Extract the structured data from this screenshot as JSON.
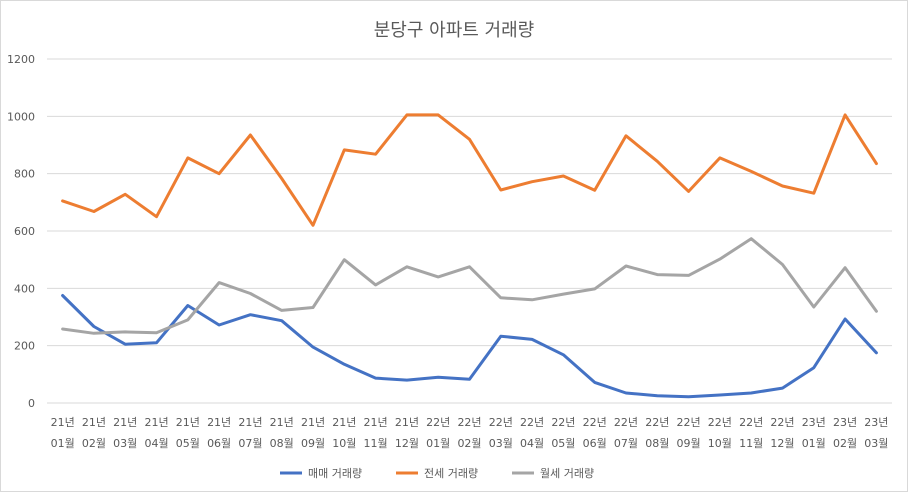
{
  "chart_data": {
    "type": "line",
    "title": "분당구 아파트 거래량",
    "xlabel": "",
    "ylabel": "",
    "ylim": [
      0,
      1200
    ],
    "yticks": [
      0,
      200,
      400,
      600,
      800,
      1000,
      1200
    ],
    "grid": true,
    "legend_position": "bottom",
    "categories": [
      [
        "21년",
        "01월"
      ],
      [
        "21년",
        "02월"
      ],
      [
        "21년",
        "03월"
      ],
      [
        "21년",
        "04월"
      ],
      [
        "21년",
        "05월"
      ],
      [
        "21년",
        "06월"
      ],
      [
        "21년",
        "07월"
      ],
      [
        "21년",
        "08월"
      ],
      [
        "21년",
        "09월"
      ],
      [
        "21년",
        "10월"
      ],
      [
        "21년",
        "11월"
      ],
      [
        "21년",
        "12월"
      ],
      [
        "22년",
        "01월"
      ],
      [
        "22년",
        "02월"
      ],
      [
        "22년",
        "03월"
      ],
      [
        "22년",
        "04월"
      ],
      [
        "22년",
        "05월"
      ],
      [
        "22년",
        "06월"
      ],
      [
        "22년",
        "07월"
      ],
      [
        "22년",
        "08월"
      ],
      [
        "22년",
        "09월"
      ],
      [
        "22년",
        "10월"
      ],
      [
        "22년",
        "11월"
      ],
      [
        "22년",
        "12월"
      ],
      [
        "23년",
        "01월"
      ],
      [
        "23년",
        "02월"
      ],
      [
        "23년",
        "03월"
      ]
    ],
    "series": [
      {
        "name": "매매 거래량",
        "color": "#4472c4",
        "values": [
          375,
          267,
          205,
          210,
          340,
          272,
          308,
          287,
          195,
          135,
          87,
          80,
          90,
          83,
          233,
          222,
          168,
          72,
          35,
          25,
          22,
          28,
          35,
          52,
          123,
          293,
          175
        ]
      },
      {
        "name": "전세 거래량",
        "color": "#ed7d31",
        "values": [
          705,
          668,
          728,
          650,
          855,
          800,
          935,
          783,
          620,
          883,
          868,
          1005,
          1005,
          920,
          743,
          772,
          792,
          742,
          932,
          843,
          738,
          855,
          808,
          757,
          732,
          1005,
          835
        ]
      },
      {
        "name": "월세 거래량",
        "color": "#a5a5a5",
        "values": [
          258,
          243,
          248,
          245,
          290,
          420,
          382,
          323,
          333,
          500,
          412,
          475,
          440,
          475,
          367,
          360,
          380,
          398,
          478,
          448,
          445,
          502,
          573,
          483,
          335,
          472,
          320
        ]
      }
    ]
  }
}
